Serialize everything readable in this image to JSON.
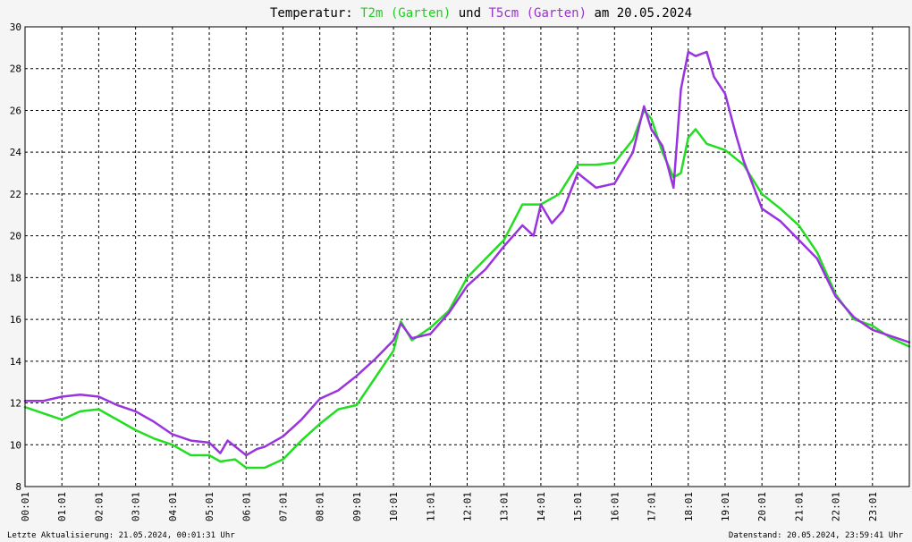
{
  "title": {
    "prefix": "Temperatur: ",
    "series1": "T2m (Garten)",
    "mid": " und ",
    "series2": "T5cm (Garten)",
    "suffix": " am 20.05.2024"
  },
  "footer": {
    "left": "Letzte Aktualisierung: 21.05.2024, 00:01:31 Uhr",
    "right": "Datenstand: 20.05.2024, 23:59:41 Uhr"
  },
  "colors": {
    "background": "#f5f5f5",
    "plot_background": "#ffffff",
    "grid": "#000000",
    "t2m": "#22dd22",
    "t5cm": "#9933dd",
    "title_t2m": "#22cc22",
    "title_t5cm": "#9933cc"
  },
  "chart_data": {
    "type": "line",
    "x_unit": "hours",
    "xlim": [
      0,
      24
    ],
    "ylim": [
      8,
      30
    ],
    "y_ticks": [
      8,
      10,
      12,
      14,
      16,
      18,
      20,
      22,
      24,
      26,
      28,
      30
    ],
    "x_ticks": [
      "00:01",
      "01:01",
      "02:01",
      "03:01",
      "04:01",
      "05:01",
      "06:01",
      "07:01",
      "08:01",
      "09:01",
      "10:01",
      "11:01",
      "12:01",
      "13:01",
      "14:01",
      "15:01",
      "16:01",
      "17:01",
      "18:01",
      "19:01",
      "20:01",
      "21:01",
      "22:01",
      "23:01"
    ],
    "grid": true,
    "series": [
      {
        "name": "T2m (Garten)",
        "color": "#22dd22",
        "points": [
          [
            0,
            11.8
          ],
          [
            0.5,
            11.5
          ],
          [
            1,
            11.2
          ],
          [
            1.5,
            11.6
          ],
          [
            2,
            11.7
          ],
          [
            2.3,
            11.4
          ],
          [
            3,
            10.7
          ],
          [
            3.5,
            10.3
          ],
          [
            4,
            10.0
          ],
          [
            4.5,
            9.5
          ],
          [
            5,
            9.5
          ],
          [
            5.3,
            9.2
          ],
          [
            5.7,
            9.3
          ],
          [
            6,
            8.9
          ],
          [
            6.5,
            8.9
          ],
          [
            7,
            9.3
          ],
          [
            7.5,
            10.2
          ],
          [
            8,
            11.0
          ],
          [
            8.5,
            11.7
          ],
          [
            9,
            11.9
          ],
          [
            9.5,
            13.2
          ],
          [
            10,
            14.5
          ],
          [
            10.2,
            15.9
          ],
          [
            10.5,
            15.0
          ],
          [
            11,
            15.6
          ],
          [
            11.5,
            16.4
          ],
          [
            12,
            18.0
          ],
          [
            12.5,
            18.9
          ],
          [
            13,
            19.8
          ],
          [
            13.5,
            21.5
          ],
          [
            14,
            21.5
          ],
          [
            14.5,
            22.0
          ],
          [
            15,
            23.4
          ],
          [
            15.5,
            23.4
          ],
          [
            16,
            23.5
          ],
          [
            16.5,
            24.6
          ],
          [
            16.8,
            26.0
          ],
          [
            17,
            25.6
          ],
          [
            17.3,
            24.0
          ],
          [
            17.6,
            22.8
          ],
          [
            17.8,
            23.0
          ],
          [
            18,
            24.7
          ],
          [
            18.2,
            25.1
          ],
          [
            18.5,
            24.4
          ],
          [
            19,
            24.1
          ],
          [
            19.5,
            23.4
          ],
          [
            20,
            22.0
          ],
          [
            20.5,
            21.3
          ],
          [
            21,
            20.5
          ],
          [
            21.5,
            19.2
          ],
          [
            22,
            17.2
          ],
          [
            22.5,
            16.0
          ],
          [
            23,
            15.7
          ],
          [
            23.5,
            15.1
          ],
          [
            24,
            14.7
          ]
        ]
      },
      {
        "name": "T5cm (Garten)",
        "color": "#9933dd",
        "points": [
          [
            0,
            12.1
          ],
          [
            0.5,
            12.1
          ],
          [
            1,
            12.3
          ],
          [
            1.5,
            12.4
          ],
          [
            2,
            12.3
          ],
          [
            2.5,
            11.9
          ],
          [
            3,
            11.6
          ],
          [
            3.5,
            11.1
          ],
          [
            4,
            10.5
          ],
          [
            4.5,
            10.2
          ],
          [
            5,
            10.1
          ],
          [
            5.3,
            9.6
          ],
          [
            5.5,
            10.2
          ],
          [
            6,
            9.5
          ],
          [
            6.3,
            9.8
          ],
          [
            6.5,
            9.9
          ],
          [
            7,
            10.4
          ],
          [
            7.5,
            11.2
          ],
          [
            8,
            12.2
          ],
          [
            8.5,
            12.6
          ],
          [
            9,
            13.3
          ],
          [
            9.5,
            14.1
          ],
          [
            10,
            15.0
          ],
          [
            10.2,
            15.8
          ],
          [
            10.5,
            15.1
          ],
          [
            11,
            15.3
          ],
          [
            11.5,
            16.3
          ],
          [
            12,
            17.6
          ],
          [
            12.5,
            18.4
          ],
          [
            13,
            19.5
          ],
          [
            13.5,
            20.5
          ],
          [
            13.8,
            20.0
          ],
          [
            14,
            21.5
          ],
          [
            14.3,
            20.6
          ],
          [
            14.6,
            21.2
          ],
          [
            15,
            23.0
          ],
          [
            15.5,
            22.3
          ],
          [
            16,
            22.5
          ],
          [
            16.5,
            24.0
          ],
          [
            16.8,
            26.2
          ],
          [
            17,
            25.1
          ],
          [
            17.3,
            24.3
          ],
          [
            17.6,
            22.3
          ],
          [
            17.8,
            27.0
          ],
          [
            18,
            28.8
          ],
          [
            18.2,
            28.6
          ],
          [
            18.5,
            28.8
          ],
          [
            18.7,
            27.6
          ],
          [
            19,
            26.8
          ],
          [
            19.3,
            24.8
          ],
          [
            19.5,
            23.6
          ],
          [
            20,
            21.3
          ],
          [
            20.5,
            20.7
          ],
          [
            21,
            19.8
          ],
          [
            21.5,
            18.9
          ],
          [
            22,
            17.1
          ],
          [
            22.5,
            16.1
          ],
          [
            23,
            15.5
          ],
          [
            23.5,
            15.2
          ],
          [
            24,
            14.9
          ]
        ]
      }
    ]
  }
}
